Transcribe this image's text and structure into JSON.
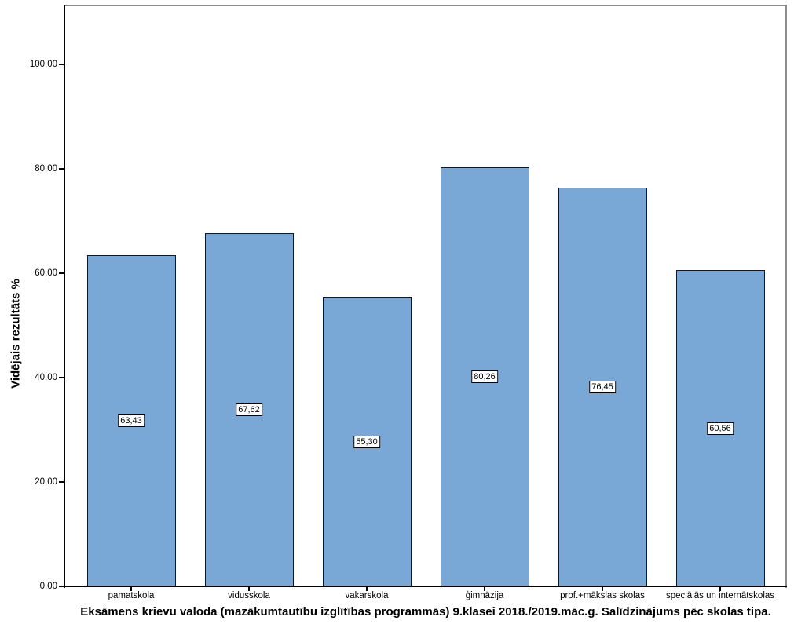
{
  "figure": {
    "background": "#ffffff"
  },
  "chart_data": {
    "type": "bar",
    "title": "Eksāmens krievu valoda (mazākumtautību izglītības programmās) 9.klasei 2018./2019.māc.g. Salīdzinājums pēc skolas tipa.",
    "ylabel": "Vidējais rezultāts %",
    "xlabel": "",
    "categories": [
      "pamatskola",
      "vidusskola",
      "vakarskola",
      "ģimnāzija",
      "prof.+mākslas skolas",
      "speciālās un internātskolas"
    ],
    "values": [
      63.43,
      67.62,
      55.3,
      80.26,
      76.45,
      60.56
    ],
    "value_labels": [
      "63,43",
      "67,62",
      "55,30",
      "80,26",
      "76,45",
      "60,56"
    ],
    "yticks": [
      0,
      20,
      40,
      60,
      80,
      100
    ],
    "ytick_labels": [
      "0,00",
      "20,00",
      "40,00",
      "60,00",
      "80,00",
      "100,00"
    ],
    "ylim": [
      0,
      111.3
    ],
    "grid": false,
    "legend_position": "none",
    "bar_color": "#7AA8D6",
    "bar_border_color": "#15151f",
    "axis_color": "#000000",
    "frame_color": "#8c8c8c",
    "value_label_bg": "#ffffff",
    "value_label_border": "#000000"
  }
}
